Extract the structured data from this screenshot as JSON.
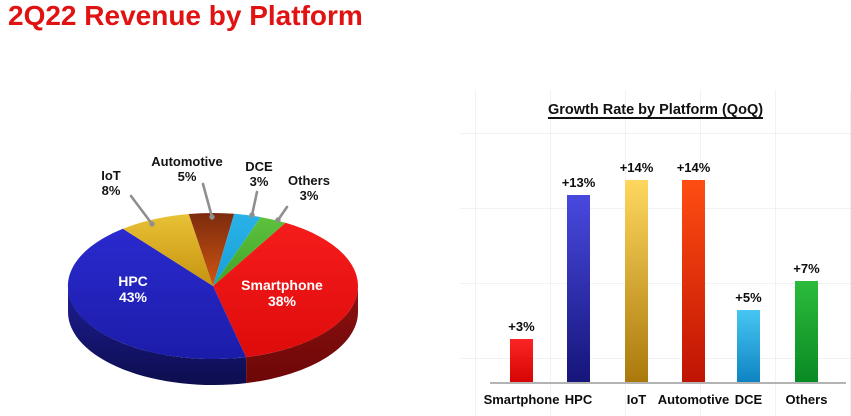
{
  "page": {
    "title": "2Q22 Revenue by Platform",
    "title_color": "#e01212"
  },
  "chart_data": [
    {
      "type": "pie",
      "name": "revenue-share-by-platform",
      "unit": "%",
      "style": "3d-pie",
      "start_angle_deg": -60,
      "slices": [
        {
          "label": "Smartphone",
          "value": 38,
          "display": "38%",
          "label_placement": "inside",
          "color_top": "#f61c1c",
          "color_bottom": "#de0b0b",
          "color_side": "#8d1111",
          "color_side_bottom": "#6d0707"
        },
        {
          "label": "HPC",
          "value": 43,
          "display": "43%",
          "label_placement": "inside",
          "color_top": "#2a2ace",
          "color_bottom": "#1c1caa",
          "color_side": "#1e1e96",
          "color_side_bottom": "#0d0d4e"
        },
        {
          "label": "IoT",
          "value": 8,
          "display": "8%",
          "label_placement": "callout",
          "color_top": "#e9c236",
          "color_bottom": "#c6930f"
        },
        {
          "label": "Automotive",
          "value": 5,
          "display": "5%",
          "label_placement": "callout",
          "color_top": "#7c2b0e",
          "color_bottom": "#cf5511"
        },
        {
          "label": "DCE",
          "value": 3,
          "display": "3%",
          "label_placement": "callout",
          "color_top": "#2ab2e8",
          "color_bottom": "#17a0d8"
        },
        {
          "label": "Others",
          "value": 3,
          "display": "3%",
          "label_placement": "callout",
          "color_top": "#5ec23e",
          "color_bottom": "#3fa227"
        }
      ],
      "leader_line_color": "#8f8f8f"
    },
    {
      "type": "bar",
      "title": "Growth Rate by Platform (QoQ)",
      "categories": [
        "Smartphone",
        "HPC",
        "IoT",
        "Automotive",
        "DCE",
        "Others"
      ],
      "values": [
        3,
        13,
        14,
        14,
        5,
        7
      ],
      "value_labels": [
        "+3%",
        "+13%",
        "+14%",
        "+14%",
        "+5%",
        "+7%"
      ],
      "bar_colors_top": [
        "#fb2525",
        "#4949e0",
        "#ffd75f",
        "#ff4d12",
        "#47c6f2",
        "#2cbb3c"
      ],
      "bar_colors_bottom": [
        "#d60404",
        "#15157a",
        "#aa790b",
        "#bf1403",
        "#0e84c2",
        "#098a23"
      ],
      "ylim": [
        0,
        15
      ],
      "grid": "faint",
      "legend": "none",
      "axis_color": "#b3b3b3"
    }
  ]
}
